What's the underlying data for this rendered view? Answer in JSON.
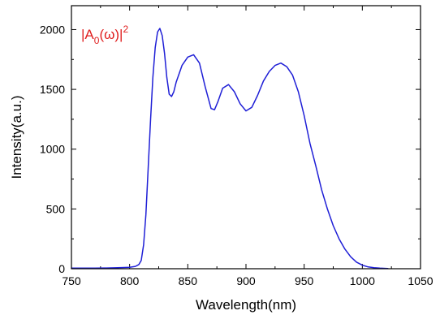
{
  "chart_data": {
    "type": "line",
    "xlabel": "Wavelength(nm)",
    "ylabel": "Intensity(a.u.)",
    "xlim": [
      750,
      1050
    ],
    "ylim": [
      0,
      2200
    ],
    "x_ticks": [
      750,
      800,
      850,
      900,
      950,
      1000,
      1050
    ],
    "y_ticks": [
      0,
      500,
      1000,
      1500,
      2000
    ],
    "grid": false,
    "line_color": "#1f1fd6",
    "annotation": {
      "color": "#e02020",
      "parts": [
        "|A",
        "0",
        "(ω)|",
        "2"
      ]
    },
    "series": [
      {
        "x": [
          750,
          760,
          770,
          780,
          790,
          800,
          805,
          808,
          810,
          812,
          814,
          816,
          818,
          820,
          822,
          824,
          826,
          828,
          830,
          832,
          834,
          836,
          838,
          840,
          845,
          850,
          855,
          860,
          865,
          870,
          873,
          876,
          880,
          885,
          890,
          895,
          900,
          905,
          910,
          915,
          920,
          925,
          930,
          935,
          940,
          945,
          950,
          955,
          960,
          965,
          970,
          975,
          980,
          985,
          990,
          995,
          1000,
          1005,
          1010,
          1015,
          1020,
          1022
        ],
        "y": [
          5,
          5,
          5,
          6,
          8,
          12,
          20,
          35,
          70,
          200,
          450,
          850,
          1250,
          1600,
          1850,
          1980,
          2010,
          1950,
          1800,
          1600,
          1460,
          1440,
          1480,
          1560,
          1700,
          1770,
          1790,
          1720,
          1520,
          1340,
          1330,
          1400,
          1510,
          1540,
          1480,
          1380,
          1320,
          1350,
          1450,
          1570,
          1650,
          1700,
          1720,
          1690,
          1620,
          1480,
          1280,
          1050,
          860,
          660,
          500,
          360,
          250,
          165,
          100,
          55,
          30,
          15,
          8,
          5,
          3,
          2
        ]
      }
    ]
  }
}
